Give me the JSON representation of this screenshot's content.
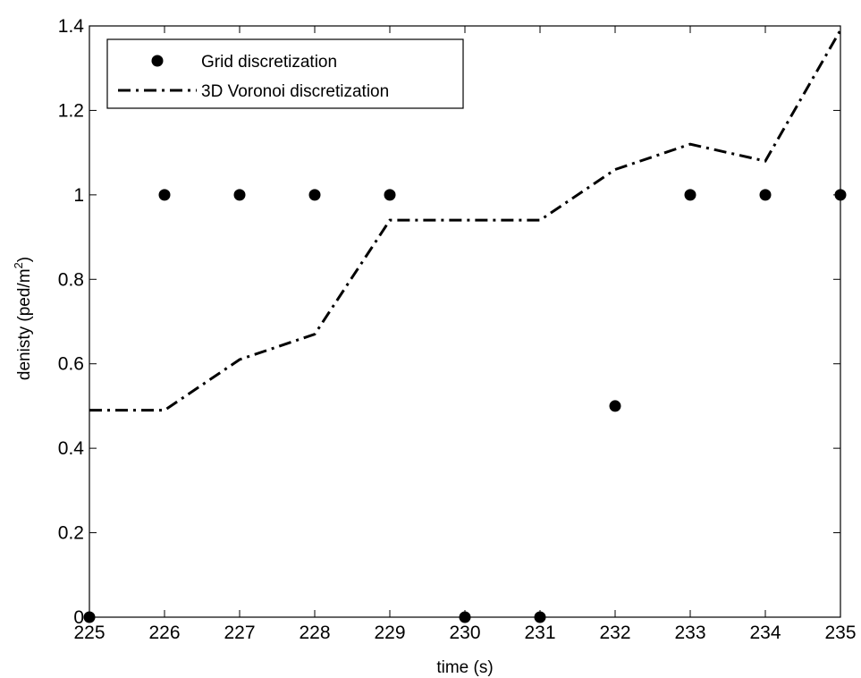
{
  "chart_data": {
    "type": "line",
    "xlabel": "time (s)",
    "ylabel_prefix": "denisty (ped/m",
    "ylabel_sup": "2",
    "ylabel_suffix": ")",
    "xlim": [
      225,
      235
    ],
    "ylim": [
      0,
      1.4
    ],
    "xticks": [
      225,
      226,
      227,
      228,
      229,
      230,
      231,
      232,
      233,
      234,
      235
    ],
    "yticks": [
      0,
      0.2,
      0.4,
      0.6,
      0.8,
      1,
      1.2,
      1.4
    ],
    "ytick_labels": [
      "0",
      "0.2",
      "0.4",
      "0.6",
      "0.8",
      "1",
      "1.2",
      "1.4"
    ],
    "grid": false,
    "legend_position": "top-left",
    "series": [
      {
        "name": "Grid discretization",
        "style": "markers",
        "marker": "filled-circle",
        "color": "#000000",
        "x": [
          225,
          226,
          227,
          228,
          229,
          230,
          231,
          232,
          233,
          234,
          235
        ],
        "y": [
          0,
          1,
          1,
          1,
          1,
          0,
          0,
          0.5,
          1,
          1,
          1
        ]
      },
      {
        "name": "3D Voronoi discretization",
        "style": "dash-dot-line",
        "color": "#000000",
        "x": [
          225,
          226,
          227,
          228,
          229,
          230,
          231,
          232,
          233,
          234,
          235
        ],
        "y": [
          0.49,
          0.49,
          0.61,
          0.67,
          0.94,
          0.94,
          0.94,
          1.06,
          1.12,
          1.08,
          1.39
        ]
      }
    ]
  }
}
